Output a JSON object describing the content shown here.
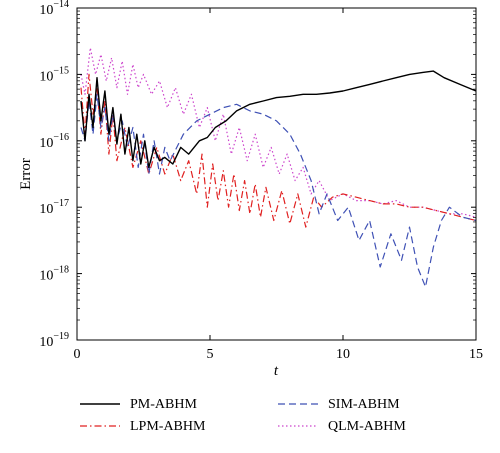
{
  "chart_data": {
    "type": "line",
    "title": "",
    "xlabel": "t",
    "ylabel": "Error",
    "xlim": [
      0,
      15
    ],
    "ylim_exponent": [
      -19,
      -14
    ],
    "yscale": "log",
    "x_ticks": [
      "0",
      "5",
      "10",
      "15"
    ],
    "y_ticks": [
      {
        "base": "10",
        "exp": "−19"
      },
      {
        "base": "10",
        "exp": "−18"
      },
      {
        "base": "10",
        "exp": "−17"
      },
      {
        "base": "10",
        "exp": "−16"
      },
      {
        "base": "10",
        "exp": "−15"
      },
      {
        "base": "10",
        "exp": "−14"
      }
    ],
    "grid": false,
    "legend_position": "below",
    "series": [
      {
        "name": "PM-ABHM",
        "color": "#000000",
        "dash": "solid",
        "points": [
          [
            0.15,
            -15.4
          ],
          [
            0.3,
            -16.0
          ],
          [
            0.45,
            -15.3
          ],
          [
            0.6,
            -15.8
          ],
          [
            0.75,
            -15.05
          ],
          [
            0.9,
            -15.7
          ],
          [
            1.05,
            -15.25
          ],
          [
            1.2,
            -15.9
          ],
          [
            1.35,
            -15.5
          ],
          [
            1.5,
            -16.05
          ],
          [
            1.65,
            -15.6
          ],
          [
            1.8,
            -16.2
          ],
          [
            1.95,
            -15.8
          ],
          [
            2.1,
            -16.3
          ],
          [
            2.25,
            -15.9
          ],
          [
            2.4,
            -16.35
          ],
          [
            2.55,
            -16.0
          ],
          [
            2.7,
            -16.4
          ],
          [
            2.9,
            -16.1
          ],
          [
            3.1,
            -16.3
          ],
          [
            3.3,
            -16.25
          ],
          [
            3.6,
            -16.35
          ],
          [
            3.9,
            -16.1
          ],
          [
            4.2,
            -16.2
          ],
          [
            4.6,
            -16.0
          ],
          [
            4.9,
            -15.95
          ],
          [
            5.2,
            -15.8
          ],
          [
            5.6,
            -15.7
          ],
          [
            6.0,
            -15.55
          ],
          [
            6.5,
            -15.45
          ],
          [
            7.0,
            -15.4
          ],
          [
            7.5,
            -15.35
          ],
          [
            8.0,
            -15.33
          ],
          [
            8.5,
            -15.3
          ],
          [
            9.0,
            -15.3
          ],
          [
            9.5,
            -15.28
          ],
          [
            10.0,
            -15.25
          ],
          [
            10.5,
            -15.2
          ],
          [
            11.0,
            -15.15
          ],
          [
            11.5,
            -15.1
          ],
          [
            12.0,
            -15.05
          ],
          [
            12.5,
            -15.0
          ],
          [
            13.0,
            -14.97
          ],
          [
            13.4,
            -14.95
          ],
          [
            13.8,
            -15.05
          ],
          [
            14.4,
            -15.15
          ],
          [
            15.0,
            -15.25
          ]
        ]
      },
      {
        "name": "LPM-ABHM",
        "color": "#e02020",
        "dash": "dashdot",
        "points": [
          [
            0.15,
            -15.2
          ],
          [
            0.3,
            -15.9
          ],
          [
            0.45,
            -15.0
          ],
          [
            0.6,
            -15.6
          ],
          [
            0.75,
            -15.2
          ],
          [
            0.9,
            -15.9
          ],
          [
            1.05,
            -15.4
          ],
          [
            1.2,
            -16.2
          ],
          [
            1.35,
            -15.6
          ],
          [
            1.5,
            -16.3
          ],
          [
            1.8,
            -15.8
          ],
          [
            2.1,
            -16.4
          ],
          [
            2.4,
            -16.0
          ],
          [
            2.7,
            -16.5
          ],
          [
            3.0,
            -16.1
          ],
          [
            3.3,
            -16.5
          ],
          [
            3.6,
            -16.2
          ],
          [
            3.9,
            -16.6
          ],
          [
            4.2,
            -16.3
          ],
          [
            4.5,
            -16.8
          ],
          [
            4.7,
            -16.2
          ],
          [
            4.9,
            -17.0
          ],
          [
            5.1,
            -16.35
          ],
          [
            5.3,
            -16.9
          ],
          [
            5.5,
            -16.45
          ],
          [
            5.7,
            -17.0
          ],
          [
            5.9,
            -16.5
          ],
          [
            6.1,
            -17.05
          ],
          [
            6.3,
            -16.6
          ],
          [
            6.5,
            -17.1
          ],
          [
            6.7,
            -16.65
          ],
          [
            6.9,
            -17.15
          ],
          [
            7.1,
            -16.7
          ],
          [
            7.4,
            -17.2
          ],
          [
            7.7,
            -16.75
          ],
          [
            8.0,
            -17.25
          ],
          [
            8.3,
            -16.8
          ],
          [
            8.6,
            -17.3
          ],
          [
            8.9,
            -16.85
          ],
          [
            9.2,
            -17.0
          ],
          [
            9.6,
            -16.85
          ],
          [
            10.0,
            -16.8
          ],
          [
            10.5,
            -16.85
          ],
          [
            11.0,
            -16.9
          ],
          [
            11.5,
            -16.95
          ],
          [
            12.0,
            -16.95
          ],
          [
            12.5,
            -17.0
          ],
          [
            13.0,
            -17.0
          ],
          [
            13.5,
            -17.05
          ],
          [
            14.0,
            -17.1
          ],
          [
            14.5,
            -17.15
          ],
          [
            15.0,
            -17.2
          ]
        ]
      },
      {
        "name": "SIM-ABHM",
        "color": "#3f51b5",
        "dash": "dashed",
        "points": [
          [
            0.15,
            -15.8
          ],
          [
            0.3,
            -16.0
          ],
          [
            0.45,
            -15.4
          ],
          [
            0.6,
            -15.9
          ],
          [
            0.75,
            -15.3
          ],
          [
            0.9,
            -15.8
          ],
          [
            1.05,
            -15.5
          ],
          [
            1.2,
            -16.0
          ],
          [
            1.35,
            -15.6
          ],
          [
            1.5,
            -16.0
          ],
          [
            1.7,
            -15.7
          ],
          [
            1.9,
            -16.1
          ],
          [
            2.1,
            -15.8
          ],
          [
            2.3,
            -16.4
          ],
          [
            2.5,
            -15.9
          ],
          [
            2.7,
            -16.5
          ],
          [
            2.9,
            -16.0
          ],
          [
            3.1,
            -16.5
          ],
          [
            3.3,
            -16.1
          ],
          [
            3.5,
            -16.3
          ],
          [
            4.0,
            -15.9
          ],
          [
            4.5,
            -15.7
          ],
          [
            5.0,
            -15.6
          ],
          [
            5.5,
            -15.5
          ],
          [
            6.0,
            -15.45
          ],
          [
            6.5,
            -15.55
          ],
          [
            7.0,
            -15.6
          ],
          [
            7.5,
            -15.7
          ],
          [
            8.0,
            -15.9
          ],
          [
            8.4,
            -16.2
          ],
          [
            8.8,
            -16.6
          ],
          [
            9.1,
            -17.1
          ],
          [
            9.4,
            -16.8
          ],
          [
            9.8,
            -17.2
          ],
          [
            10.2,
            -17.0
          ],
          [
            10.6,
            -17.5
          ],
          [
            11.0,
            -17.2
          ],
          [
            11.4,
            -17.9
          ],
          [
            11.8,
            -17.4
          ],
          [
            12.2,
            -17.8
          ],
          [
            12.5,
            -17.3
          ],
          [
            12.8,
            -17.9
          ],
          [
            13.1,
            -18.2
          ],
          [
            13.4,
            -17.6
          ],
          [
            13.7,
            -17.2
          ],
          [
            14.0,
            -17.0
          ],
          [
            14.5,
            -17.15
          ],
          [
            15.0,
            -17.2
          ]
        ]
      },
      {
        "name": "QLM-ABHM",
        "color": "#cc44cc",
        "dash": "dotted",
        "points": [
          [
            0.15,
            -15.0
          ],
          [
            0.3,
            -15.3
          ],
          [
            0.5,
            -14.6
          ],
          [
            0.7,
            -15.0
          ],
          [
            0.9,
            -14.7
          ],
          [
            1.1,
            -15.1
          ],
          [
            1.3,
            -14.75
          ],
          [
            1.5,
            -15.2
          ],
          [
            1.7,
            -14.8
          ],
          [
            1.9,
            -15.3
          ],
          [
            2.1,
            -14.85
          ],
          [
            2.3,
            -15.2
          ],
          [
            2.5,
            -15.0
          ],
          [
            2.8,
            -15.3
          ],
          [
            3.1,
            -15.1
          ],
          [
            3.4,
            -15.5
          ],
          [
            3.7,
            -15.2
          ],
          [
            4.0,
            -15.6
          ],
          [
            4.3,
            -15.3
          ],
          [
            4.6,
            -15.8
          ],
          [
            4.9,
            -15.5
          ],
          [
            5.2,
            -16.0
          ],
          [
            5.5,
            -15.6
          ],
          [
            5.8,
            -16.2
          ],
          [
            6.1,
            -15.8
          ],
          [
            6.4,
            -16.3
          ],
          [
            6.7,
            -15.9
          ],
          [
            7.0,
            -16.4
          ],
          [
            7.3,
            -16.1
          ],
          [
            7.6,
            -16.5
          ],
          [
            7.9,
            -16.2
          ],
          [
            8.2,
            -16.6
          ],
          [
            8.5,
            -16.4
          ],
          [
            8.8,
            -16.8
          ],
          [
            9.1,
            -16.6
          ],
          [
            9.5,
            -16.9
          ],
          [
            10.0,
            -16.8
          ],
          [
            10.5,
            -16.9
          ],
          [
            11.0,
            -16.9
          ],
          [
            11.5,
            -16.95
          ],
          [
            12.0,
            -16.9
          ],
          [
            12.5,
            -17.0
          ],
          [
            13.0,
            -17.0
          ],
          [
            13.5,
            -17.05
          ],
          [
            14.0,
            -17.1
          ],
          [
            14.5,
            -17.1
          ],
          [
            15.0,
            -17.15
          ]
        ]
      }
    ]
  }
}
